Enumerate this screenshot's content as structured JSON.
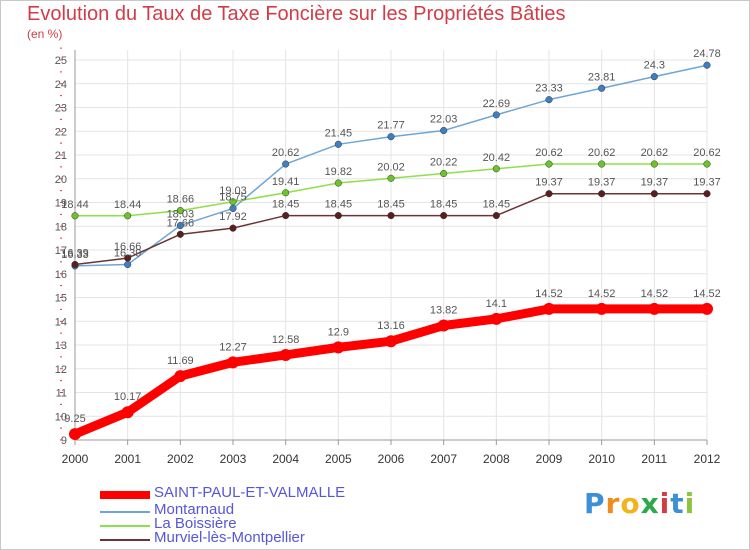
{
  "chart_data": {
    "type": "line",
    "title": "Evolution du Taux de Taxe Foncière sur les Propriétés Bâties",
    "ylabel": "(en %)",
    "xlabel": "",
    "x": [
      "2000",
      "2001",
      "2002",
      "2003",
      "2004",
      "2005",
      "2006",
      "2007",
      "2008",
      "2009",
      "2010",
      "2011",
      "2012"
    ],
    "ylim": [
      9,
      25
    ],
    "yticks": [
      "9",
      "10",
      "11",
      "12",
      "13",
      "14",
      "15",
      "16",
      "17",
      "18",
      "19",
      "20",
      "21",
      "22",
      "23",
      "24",
      "25"
    ],
    "grid": true,
    "legend_position": "bottom-left",
    "series": [
      {
        "name": "SAINT-PAUL-ET-VALMALLE",
        "color": "#ff0000",
        "marker": "#ff0000",
        "thick": true,
        "values": [
          9.25,
          10.17,
          11.69,
          12.27,
          12.58,
          12.9,
          13.16,
          13.82,
          14.1,
          14.52,
          14.52,
          14.52,
          14.52
        ],
        "labels": [
          "9.25",
          "10.17",
          "11.69",
          "12.27",
          "12.58",
          "12.9",
          "13.16",
          "13.82",
          "14.1",
          "14.52",
          "14.52",
          "14.52",
          "14.52"
        ]
      },
      {
        "name": "Montarnaud",
        "color": "#6ea6d6",
        "marker": "#3d7fc0",
        "thick": false,
        "values": [
          16.33,
          16.39,
          18.03,
          18.75,
          20.62,
          21.45,
          21.77,
          22.03,
          22.69,
          23.33,
          23.81,
          24.3,
          24.78
        ],
        "labels": [
          "16.33",
          "16.39",
          "18.03",
          "18.75",
          "20.62",
          "21.45",
          "21.77",
          "22.03",
          "22.69",
          "23.33",
          "23.81",
          "24.3",
          "24.78"
        ]
      },
      {
        "name": "La Boissière",
        "color": "#8ee04a",
        "marker": "#6cc42a",
        "thick": false,
        "values": [
          18.44,
          18.44,
          18.66,
          19.03,
          19.41,
          19.82,
          20.02,
          20.22,
          20.42,
          20.62,
          20.62,
          20.62,
          20.62
        ],
        "labels": [
          "18.44",
          "18.44",
          "18.66",
          "19.03",
          "19.41",
          "19.82",
          "20.02",
          "20.22",
          "20.42",
          "20.62",
          "20.62",
          "20.62",
          "20.62"
        ]
      },
      {
        "name": "Murviel-lès-Montpellier",
        "color": "#6a3434",
        "marker": "#5a1e1e",
        "thick": false,
        "values": [
          16.39,
          16.66,
          17.66,
          17.92,
          18.45,
          18.45,
          18.45,
          18.45,
          18.45,
          19.37,
          19.37,
          19.37,
          19.37
        ],
        "labels": [
          "16.39",
          "16.66",
          "17.66",
          "17.92",
          "18.45",
          "18.45",
          "18.45",
          "18.45",
          "18.45",
          "19.37",
          "19.37",
          "19.37",
          "19.37"
        ]
      }
    ]
  },
  "legend": {
    "items": [
      "SAINT-PAUL-ET-VALMALLE",
      "Montarnaud",
      "La Boissière",
      "Murviel-lès-Montpellier"
    ]
  },
  "logo": {
    "letters": [
      "P",
      "r",
      "o",
      "x",
      "i",
      "t",
      "i"
    ],
    "colors": [
      "#3d8fd6",
      "#f08c1e",
      "#f0b41e",
      "#2ea84a",
      "#d23c46",
      "#3d8fd6",
      "#8cc43c"
    ]
  }
}
